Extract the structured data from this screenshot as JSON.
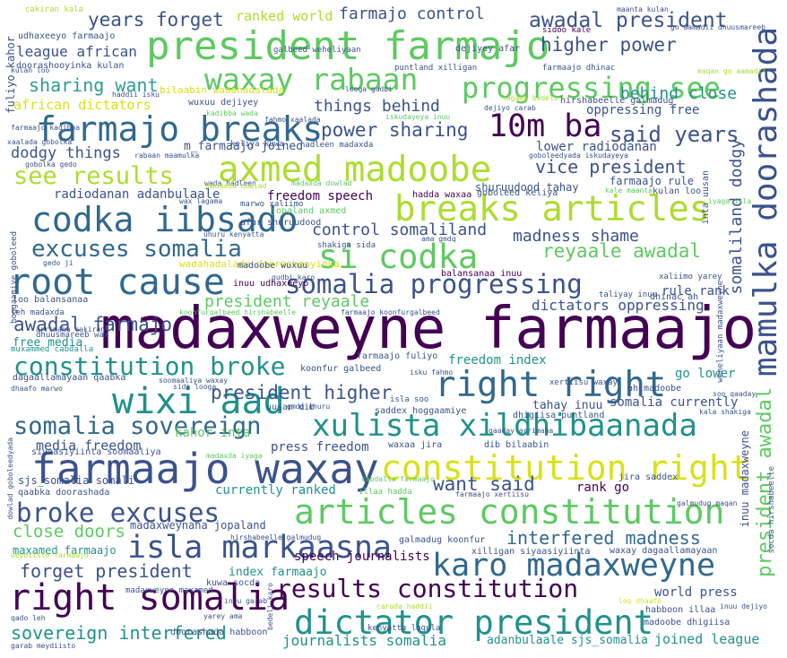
{
  "palette": {
    "dark_purple": "#440154",
    "indigo": "#3b528b",
    "blue": "#31688e",
    "teal": "#21918c",
    "green_teal": "#2a9d8f",
    "green": "#5ec962",
    "lime": "#addc30",
    "yellow": "#d7e219"
  },
  "words": [
    {
      "text": "madaxweyne farmaajo",
      "color": "#440154"
    },
    {
      "text": "president farmajo",
      "color": "#5ec962"
    },
    {
      "text": "waxay rabaan",
      "color": "#5ec962"
    },
    {
      "text": "progressing see",
      "color": "#5ec962"
    },
    {
      "text": "farmajo breaks",
      "color": "#31688e"
    },
    {
      "text": "axmed madoobe",
      "color": "#addc30"
    },
    {
      "text": "10m ba",
      "color": "#440154"
    },
    {
      "text": "mamulka doorashada",
      "color": "#3b528b"
    },
    {
      "text": "codka iibsado",
      "color": "#31688e"
    },
    {
      "text": "breaks articles",
      "color": "#addc30"
    },
    {
      "text": "si codka",
      "color": "#5ec962"
    },
    {
      "text": "root cause",
      "color": "#31688e"
    },
    {
      "text": "somalia progressing",
      "color": "#3b528b"
    },
    {
      "text": "constitution broke",
      "color": "#21918c"
    },
    {
      "text": "wixi aad",
      "color": "#21918c"
    },
    {
      "text": "right right",
      "color": "#31688e"
    },
    {
      "text": "xulista xildhibaanada",
      "color": "#21918c"
    },
    {
      "text": "farmaajo waxay",
      "color": "#3b528b"
    },
    {
      "text": "constitution right",
      "color": "#d7e219"
    },
    {
      "text": "articles constitution",
      "color": "#5ec962"
    },
    {
      "text": "broke excuses",
      "color": "#3b528b"
    },
    {
      "text": "isla markaasna",
      "color": "#3b528b"
    },
    {
      "text": "karo madaxweyne",
      "color": "#31688e"
    },
    {
      "text": "right somalia",
      "color": "#440154"
    },
    {
      "text": "results constitution",
      "color": "#440154"
    },
    {
      "text": "dictator president",
      "color": "#21918c"
    },
    {
      "text": "somalia sovereign",
      "color": "#31688e"
    },
    {
      "text": "excuses somalia",
      "color": "#31688e"
    },
    {
      "text": "years forget",
      "color": "#3b528b"
    },
    {
      "text": "awadal president",
      "color": "#3b528b"
    },
    {
      "text": "farmajo control",
      "color": "#3b528b"
    },
    {
      "text": "higher power",
      "color": "#3b528b"
    },
    {
      "text": "sharing want",
      "color": "#2a9d8f"
    },
    {
      "text": "see results",
      "color": "#addc30"
    },
    {
      "text": "power sharing",
      "color": "#3b528b"
    },
    {
      "text": "said years",
      "color": "#3b528b"
    },
    {
      "text": "vice president",
      "color": "#3b528b"
    },
    {
      "text": "dodgy things",
      "color": "#3b528b"
    },
    {
      "text": "things behind",
      "color": "#3b528b"
    },
    {
      "text": "behind close",
      "color": "#21918c"
    },
    {
      "text": "president higher",
      "color": "#3b528b"
    },
    {
      "text": "control somaliland",
      "color": "#3b528b"
    },
    {
      "text": "madness shame",
      "color": "#3b528b"
    },
    {
      "text": "reyaale awadal",
      "color": "#5ec962"
    },
    {
      "text": "awadal farmajo",
      "color": "#3b528b"
    },
    {
      "text": "president reyaale",
      "color": "#5ec962"
    },
    {
      "text": "dictators oppressing",
      "color": "#3b528b"
    },
    {
      "text": "interfered madness",
      "color": "#31688e"
    },
    {
      "text": "want said",
      "color": "#3b528b"
    },
    {
      "text": "forget president",
      "color": "#3b528b"
    },
    {
      "text": "close doors",
      "color": "#5ec962"
    },
    {
      "text": "sovereign interfered",
      "color": "#21918c"
    },
    {
      "text": "journalists somalia",
      "color": "#21918c"
    },
    {
      "text": "president awadal",
      "color": "#5ec962"
    },
    {
      "text": "somaliland dodgy",
      "color": "#3b528b"
    },
    {
      "text": "league african",
      "color": "#3b528b"
    },
    {
      "text": "african dictators",
      "color": "#d7e219"
    },
    {
      "text": "ranked world",
      "color": "#addc30"
    },
    {
      "text": "radiodanan adanbulaale",
      "color": "#3b528b"
    },
    {
      "text": "freedom speech",
      "color": "#440154"
    },
    {
      "text": "media freedom",
      "color": "#3b528b"
    },
    {
      "text": "press freedom",
      "color": "#3b528b"
    },
    {
      "text": "speech journalists",
      "color": "#440154"
    },
    {
      "text": "world press",
      "color": "#3b528b"
    },
    {
      "text": "joined league",
      "color": "#21918c"
    },
    {
      "text": "adanbulaale sjs_somalia",
      "color": "#21918c"
    },
    {
      "text": "index farmaajo",
      "color": "#21918c"
    },
    {
      "text": "freedom index",
      "color": "#21918c"
    },
    {
      "text": "currently ranked",
      "color": "#21918c"
    },
    {
      "text": "somalia currently",
      "color": "#3b528b"
    },
    {
      "text": "go lower",
      "color": "#21918c"
    },
    {
      "text": "rank go",
      "color": "#440154"
    },
    {
      "text": "rule rank",
      "color": "#3b528b"
    },
    {
      "text": "lower radiodanan",
      "color": "#3b528b"
    },
    {
      "text": "oppressing free",
      "color": "#3b528b"
    },
    {
      "text": "free media",
      "color": "#21918c"
    },
    {
      "text": "madaxweynaha jopaland",
      "color": "#3b528b"
    },
    {
      "text": "maxamed farmaajo",
      "color": "#21918c"
    },
    {
      "text": "farmaajo rule",
      "color": "#3b528b"
    },
    {
      "text": "shuruudood tahay",
      "color": "#3b528b"
    },
    {
      "text": "kahor inta",
      "color": "#5ec962"
    },
    {
      "text": "tahay inuu",
      "color": "#3b528b"
    },
    {
      "text": "inuu madaxweyne",
      "color": "#3b528b"
    },
    {
      "text": "sjs_somalia somali",
      "color": "#3b528b"
    },
    {
      "text": "m_farmaajo joined",
      "color": "#3b528b"
    },
    {
      "text": "fuliyo kahor",
      "color": "#3b528b"
    },
    {
      "text": "udhaxeeyo farmaajo",
      "color": "#3b528b"
    },
    {
      "text": "doorashooyinka kulan",
      "color": "#3b528b"
    },
    {
      "text": "bilaabin wadahadalada",
      "color": "#d7e219"
    },
    {
      "text": "wuxuu dejiyey",
      "color": "#3b528b"
    },
    {
      "text": "dejiyey afar",
      "color": "#3b528b"
    },
    {
      "text": "hirshabeelle galmadug",
      "color": "#3b528b"
    },
    {
      "text": "cakiran kala",
      "color": "#addc30"
    },
    {
      "text": "galbeed weheliyaan",
      "color": "#3b528b"
    },
    {
      "text": "puntland xilligan",
      "color": "#3b528b"
    },
    {
      "text": "farmaajo dhinac",
      "color": "#3b528b"
    },
    {
      "text": "maanta kulan",
      "color": "#3b528b"
    },
    {
      "text": "go aamadii dhuusmareeb",
      "color": "#3b528b"
    },
    {
      "text": "sidoo kale",
      "color": "#440154"
    },
    {
      "text": "jopaland axmed",
      "color": "#5ec962"
    },
    {
      "text": "afar shuruudood",
      "color": "#3b528b"
    },
    {
      "text": "kulan loo",
      "color": "#3b528b"
    },
    {
      "text": "goboleed keliya",
      "color": "#3b528b"
    },
    {
      "text": "hadda waxaa",
      "color": "#440154"
    },
    {
      "text": "inta uusan",
      "color": "#3b528b"
    },
    {
      "text": "balansanaa inuu",
      "color": "#440154"
    },
    {
      "text": "wadahadalada doorashooyinka",
      "color": "#d7e219"
    },
    {
      "text": "madoobe wuxuu",
      "color": "#3b528b"
    },
    {
      "text": "inuu udhaxeeyo",
      "color": "#440154"
    },
    {
      "text": "dhinac ah",
      "color": "#3b528b"
    },
    {
      "text": "loo balansanaa",
      "color": "#3b528b"
    },
    {
      "text": "dagaallamayaan qaabka",
      "color": "#3b528b"
    },
    {
      "text": "farmaajo fuliyo",
      "color": "#3b528b"
    },
    {
      "text": "koonfur galbeed",
      "color": "#3b528b"
    },
    {
      "text": "ah madoobe",
      "color": "#3b528b"
    },
    {
      "text": "dhigiisa puntland",
      "color": "#3b528b"
    },
    {
      "text": "uusan dib",
      "color": "#3b528b"
    },
    {
      "text": "saddex hoggaamiye",
      "color": "#3b528b"
    },
    {
      "text": "waxaa jira",
      "color": "#3b528b"
    },
    {
      "text": "dib bilaabin",
      "color": "#3b528b"
    },
    {
      "text": "jira saddex",
      "color": "#3b528b"
    },
    {
      "text": "siyaasiyiinta soomaaliya",
      "color": "#3b528b"
    },
    {
      "text": "qaabka doorashada",
      "color": "#3b528b"
    },
    {
      "text": "galmadug koonfur",
      "color": "#3b528b"
    },
    {
      "text": "xilligan siyaasiyiinta",
      "color": "#3b528b"
    },
    {
      "text": "waxay dagaallamayaan",
      "color": "#3b528b"
    },
    {
      "text": "madaxweyne maxamed",
      "color": "#3b528b"
    },
    {
      "text": "kuwa socda",
      "color": "#3b528b"
    },
    {
      "text": "habboon illaa",
      "color": "#3b528b"
    },
    {
      "text": "madoobe dhigiisa",
      "color": "#3b528b"
    },
    {
      "text": "doorashada habboon",
      "color": "#3b528b"
    },
    {
      "text": "kenyatta lagula",
      "color": "#3b528b"
    },
    {
      "text": "hoggaamiye goboleed",
      "color": "#3b528b"
    },
    {
      "text": "leh madaxda",
      "color": "#3b528b"
    },
    {
      "text": "dhuusmareeb wax",
      "color": "#3b528b"
    },
    {
      "text": "muxammed cabdalla",
      "color": "#21918c"
    },
    {
      "text": "xertiisu waxay",
      "color": "#3b528b"
    },
    {
      "text": "isla soo",
      "color": "#3b528b"
    },
    {
      "text": "illaa hadda",
      "color": "#5ec962"
    },
    {
      "text": "socda hirshabeelle",
      "color": "#3b528b"
    },
    {
      "text": "weheliyaan madaxweyne",
      "color": "#3b528b"
    },
    {
      "text": "keliya kuwa",
      "color": "#3b528b"
    },
    {
      "text": "hadleen madaxda",
      "color": "#3b528b"
    },
    {
      "text": "shakiga sida",
      "color": "#3b528b"
    },
    {
      "text": "marwo xaliimo",
      "color": "#3b528b"
    },
    {
      "text": "xaliimo yarey",
      "color": "#3b528b"
    },
    {
      "text": "taliyay inuu",
      "color": "#3b528b"
    },
    {
      "text": "dowlad goboleedyada",
      "color": "#3b528b"
    },
    {
      "text": "garab meydiisto",
      "color": "#3b528b"
    },
    {
      "text": "qado leh",
      "color": "#3b528b"
    },
    {
      "text": "yarey ama",
      "color": "#3b528b"
    },
    {
      "text": "bedeli karo",
      "color": "#3b528b"
    },
    {
      "text": "inuu dejiyo",
      "color": "#3b528b"
    },
    {
      "text": "maqan go aamadii",
      "color": "#addc30"
    },
    {
      "text": "galmudug maqan",
      "color": "#3b528b"
    },
    {
      "text": "cabdalla farmaajo",
      "color": "#5ec962"
    },
    {
      "text": "farmaajo xertiisu",
      "color": "#3b528b"
    },
    {
      "text": "kala shakiga",
      "color": "#3b528b"
    },
    {
      "text": "qaaday arrimaha",
      "color": "#3b528b"
    },
    {
      "text": "soomaaliya waxay",
      "color": "#3b528b"
    },
    {
      "text": "sida looga",
      "color": "#3b528b"
    },
    {
      "text": "dhaafo marwo",
      "color": "#3b528b"
    },
    {
      "text": "gudbi karo",
      "color": "#3b528b"
    },
    {
      "text": "uhuru kenyatta",
      "color": "#3b528b"
    },
    {
      "text": "rabaan maamulka",
      "color": "#3b528b"
    },
    {
      "text": "wada hadleen",
      "color": "#3b528b"
    },
    {
      "text": "madaxda dowlad",
      "color": "#5ec962"
    },
    {
      "text": "gobolka gedo",
      "color": "#3b528b"
    },
    {
      "text": "xaalada gobolka",
      "color": "#3b528b"
    },
    {
      "text": "kadibba wada",
      "color": "#5ec962"
    },
    {
      "text": "fahmo xaalada",
      "color": "#3b528b"
    },
    {
      "text": "iskudayeya inuu",
      "color": "#5ec962"
    },
    {
      "text": "dejiyo carab",
      "color": "#3b528b"
    },
    {
      "text": "goboleedyada iskudayeya",
      "color": "#3b528b"
    },
    {
      "text": "kale maanta",
      "color": "#5ec962"
    },
    {
      "text": "iyaga isla",
      "color": "#5ec962"
    },
    {
      "text": "wax lagama",
      "color": "#3b528b"
    },
    {
      "text": "lagama bedeli",
      "color": "#addc30"
    },
    {
      "text": "looga gudbi",
      "color": "#3b528b"
    },
    {
      "text": "haddii isku",
      "color": "#3b528b"
    },
    {
      "text": "isku fahmo",
      "color": "#3b528b"
    },
    {
      "text": "ama gmdq",
      "color": "#3b528b"
    },
    {
      "text": "gedo ji",
      "color": "#3b528b"
    },
    {
      "text": "arrimaha cakiran",
      "color": "#3b528b"
    },
    {
      "text": "soo qaaday",
      "color": "#3b528b"
    },
    {
      "text": "koonfurgalbeed hirshabeelle",
      "color": "#5ec962"
    },
    {
      "text": "farmaajo koonfurgalbeed",
      "color": "#3b528b"
    },
    {
      "text": "madaxda iyaga",
      "color": "#5ec962"
    },
    {
      "text": "inuu garab",
      "color": "#3b528b"
    },
    {
      "text": "gmdq uhuru",
      "color": "#3b528b"
    },
    {
      "text": "weydiisto farmaajo",
      "color": "#addc30"
    },
    {
      "text": "farmaajo kadibba",
      "color": "#3b528b"
    },
    {
      "text": "madaxda duwlad",
      "color": "#addc30"
    },
    {
      "text": "hirshabeelle galmudug",
      "color": "#3b528b"
    },
    {
      "text": "carada haddii",
      "color": "#addc30"
    },
    {
      "text": "loo dhaafo",
      "color": "#d7e219"
    },
    {
      "text": "kulan loo",
      "color": "#3b528b"
    }
  ]
}
